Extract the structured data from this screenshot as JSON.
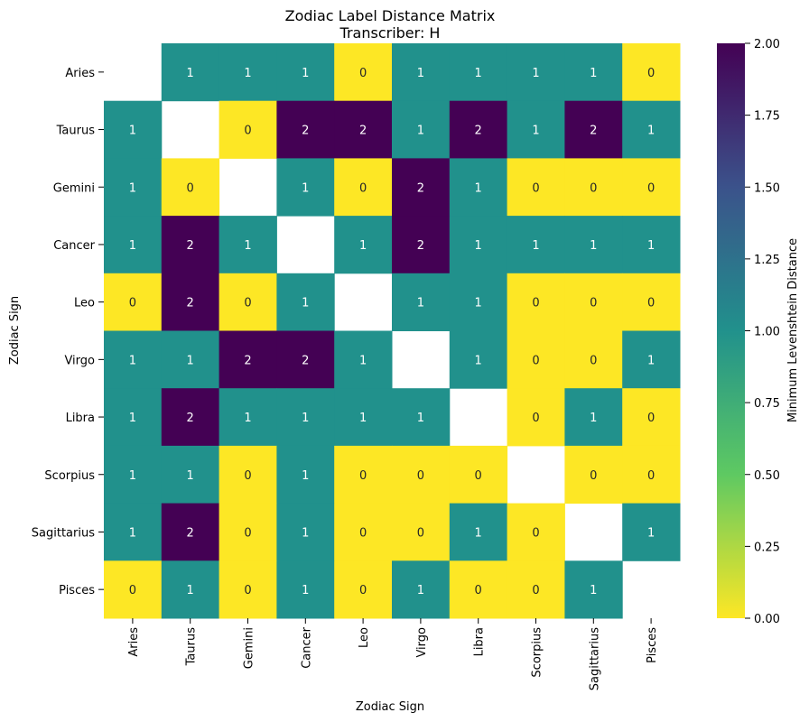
{
  "chart_data": {
    "type": "heatmap",
    "title": "Zodiac Label Distance Matrix",
    "subtitle": "Transcriber: H",
    "xlabel": "Zodiac Sign",
    "ylabel": "Zodiac Sign",
    "x_categories": [
      "Aries",
      "Taurus",
      "Gemini",
      "Cancer",
      "Leo",
      "Virgo",
      "Libra",
      "Scorpius",
      "Sagittarius",
      "Pisces"
    ],
    "y_categories": [
      "Aries",
      "Taurus",
      "Gemini",
      "Cancer",
      "Leo",
      "Virgo",
      "Libra",
      "Scorpius",
      "Sagittarius",
      "Pisces"
    ],
    "values": [
      [
        null,
        1,
        1,
        1,
        0,
        1,
        1,
        1,
        1,
        0
      ],
      [
        1,
        null,
        0,
        2,
        2,
        1,
        2,
        1,
        2,
        1
      ],
      [
        1,
        0,
        null,
        1,
        0,
        2,
        1,
        0,
        0,
        0
      ],
      [
        1,
        2,
        1,
        null,
        1,
        2,
        1,
        1,
        1,
        1
      ],
      [
        0,
        2,
        0,
        1,
        null,
        1,
        1,
        0,
        0,
        0
      ],
      [
        1,
        1,
        2,
        2,
        1,
        null,
        1,
        0,
        0,
        1
      ],
      [
        1,
        2,
        1,
        1,
        1,
        1,
        null,
        0,
        1,
        0
      ],
      [
        1,
        1,
        0,
        1,
        0,
        0,
        0,
        null,
        0,
        0
      ],
      [
        1,
        2,
        0,
        1,
        0,
        0,
        1,
        0,
        null,
        1
      ],
      [
        0,
        1,
        0,
        1,
        0,
        1,
        0,
        0,
        1,
        null
      ]
    ],
    "colormap": "viridis_r",
    "vmin": 0,
    "vmax": 2,
    "colorbar": {
      "label": "Minimum Levenshtein Distance",
      "ticks": [
        0,
        0.25,
        0.5,
        0.75,
        1,
        1.25,
        1.5,
        1.75,
        2
      ],
      "tick_labels": [
        "0.00",
        "0.25",
        "0.50",
        "0.75",
        "1.00",
        "1.25",
        "1.50",
        "1.75",
        "2.00"
      ]
    },
    "annotated": true,
    "diagonal": "masked"
  }
}
